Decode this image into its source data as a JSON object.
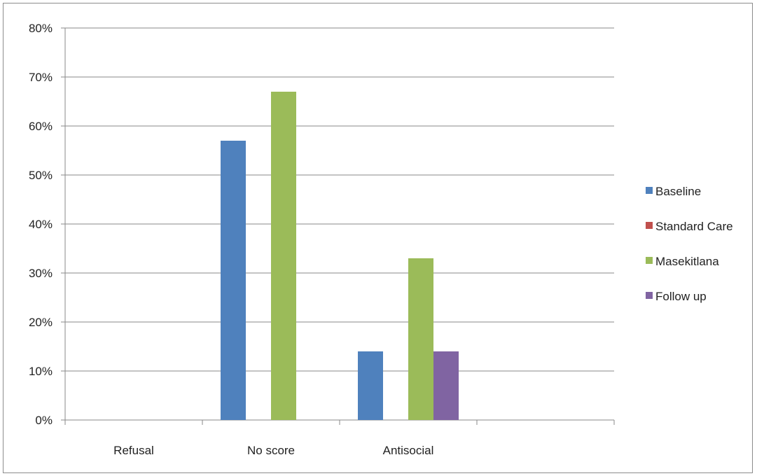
{
  "chart_data": {
    "type": "bar",
    "categories": [
      "Refusal",
      "No score",
      "Antisocial",
      ""
    ],
    "y_tick_labels": [
      "0%",
      "10%",
      "20%",
      "30%",
      "40%",
      "50%",
      "60%",
      "70%",
      "80%"
    ],
    "ylim": [
      0,
      80
    ],
    "y_unit": "%",
    "grid": true,
    "legend_position": "right",
    "series": [
      {
        "name": "Baseline",
        "color": "#4f81bd",
        "values": [
          0,
          57,
          14,
          0
        ]
      },
      {
        "name": "Standard Care",
        "color": "#c0504d",
        "values": [
          0,
          0,
          0,
          0
        ]
      },
      {
        "name": "Masekitlana",
        "color": "#9bbb59",
        "values": [
          0,
          67,
          33,
          0
        ]
      },
      {
        "name": "Follow up",
        "color": "#8064a2",
        "values": [
          0,
          0,
          14,
          0
        ]
      }
    ]
  }
}
